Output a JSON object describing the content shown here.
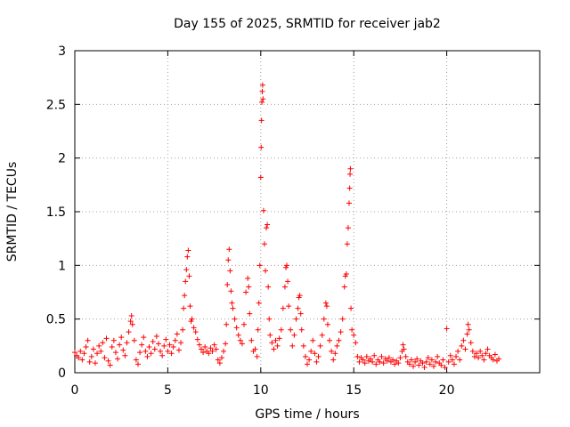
{
  "chart_data": {
    "type": "scatter",
    "title": "Day 155 of 2025, SRMTID for receiver jab2",
    "xlabel": "GPS time / hours",
    "ylabel": "SRMTID / TECUs",
    "xlim": [
      0,
      25
    ],
    "ylim": [
      0,
      3
    ],
    "xticks": [
      0,
      5,
      10,
      15,
      20
    ],
    "yticks": [
      0,
      0.5,
      1,
      1.5,
      2,
      2.5,
      3
    ],
    "xtick_labels": [
      "0",
      "5",
      "10",
      "15",
      "20"
    ],
    "ytick_labels": [
      "0",
      "0.5",
      "1",
      "1.5",
      "2",
      "2.5",
      "3"
    ],
    "grid": true,
    "marker": "+",
    "color": "#ff0000",
    "series": [
      {
        "name": "SRMTID",
        "points": [
          [
            0.0,
            0.19
          ],
          [
            0.1,
            0.16
          ],
          [
            0.2,
            0.14
          ],
          [
            0.3,
            0.2
          ],
          [
            0.4,
            0.12
          ],
          [
            0.5,
            0.18
          ],
          [
            0.6,
            0.24
          ],
          [
            0.7,
            0.3
          ],
          [
            0.8,
            0.1
          ],
          [
            0.9,
            0.15
          ],
          [
            1.0,
            0.22
          ],
          [
            1.1,
            0.09
          ],
          [
            1.2,
            0.18
          ],
          [
            1.3,
            0.25
          ],
          [
            1.4,
            0.2
          ],
          [
            1.5,
            0.28
          ],
          [
            1.6,
            0.14
          ],
          [
            1.7,
            0.32
          ],
          [
            1.8,
            0.11
          ],
          [
            1.9,
            0.07
          ],
          [
            2.0,
            0.24
          ],
          [
            2.1,
            0.3
          ],
          [
            2.2,
            0.19
          ],
          [
            2.3,
            0.13
          ],
          [
            2.4,
            0.26
          ],
          [
            2.5,
            0.33
          ],
          [
            2.6,
            0.21
          ],
          [
            2.7,
            0.16
          ],
          [
            2.8,
            0.28
          ],
          [
            2.9,
            0.38
          ],
          [
            3.0,
            0.48
          ],
          [
            3.05,
            0.53
          ],
          [
            3.1,
            0.45
          ],
          [
            3.2,
            0.3
          ],
          [
            3.3,
            0.12
          ],
          [
            3.4,
            0.08
          ],
          [
            3.5,
            0.19
          ],
          [
            3.6,
            0.26
          ],
          [
            3.7,
            0.33
          ],
          [
            3.8,
            0.2
          ],
          [
            3.9,
            0.15
          ],
          [
            4.0,
            0.24
          ],
          [
            4.1,
            0.18
          ],
          [
            4.2,
            0.29
          ],
          [
            4.3,
            0.22
          ],
          [
            4.4,
            0.34
          ],
          [
            4.5,
            0.27
          ],
          [
            4.6,
            0.2
          ],
          [
            4.7,
            0.16
          ],
          [
            4.8,
            0.25
          ],
          [
            4.9,
            0.31
          ],
          [
            5.0,
            0.2
          ],
          [
            5.1,
            0.26
          ],
          [
            5.2,
            0.18
          ],
          [
            5.3,
            0.24
          ],
          [
            5.4,
            0.3
          ],
          [
            5.5,
            0.36
          ],
          [
            5.6,
            0.21
          ],
          [
            5.7,
            0.28
          ],
          [
            5.8,
            0.4
          ],
          [
            5.85,
            0.6
          ],
          [
            5.9,
            0.72
          ],
          [
            5.95,
            0.85
          ],
          [
            6.0,
            0.96
          ],
          [
            6.05,
            1.08
          ],
          [
            6.1,
            1.14
          ],
          [
            6.15,
            0.9
          ],
          [
            6.2,
            0.62
          ],
          [
            6.25,
            0.48
          ],
          [
            6.3,
            0.5
          ],
          [
            6.4,
            0.42
          ],
          [
            6.5,
            0.38
          ],
          [
            6.6,
            0.31
          ],
          [
            6.7,
            0.26
          ],
          [
            6.8,
            0.22
          ],
          [
            6.9,
            0.19
          ],
          [
            7.0,
            0.24
          ],
          [
            7.1,
            0.2
          ],
          [
            7.2,
            0.18
          ],
          [
            7.3,
            0.23
          ],
          [
            7.4,
            0.2
          ],
          [
            7.5,
            0.26
          ],
          [
            7.6,
            0.22
          ],
          [
            7.7,
            0.12
          ],
          [
            7.8,
            0.09
          ],
          [
            7.9,
            0.14
          ],
          [
            8.0,
            0.2
          ],
          [
            8.1,
            0.27
          ],
          [
            8.15,
            0.45
          ],
          [
            8.2,
            0.82
          ],
          [
            8.25,
            1.05
          ],
          [
            8.3,
            1.15
          ],
          [
            8.35,
            0.95
          ],
          [
            8.4,
            0.76
          ],
          [
            8.45,
            0.65
          ],
          [
            8.5,
            0.6
          ],
          [
            8.6,
            0.5
          ],
          [
            8.7,
            0.42
          ],
          [
            8.8,
            0.35
          ],
          [
            8.9,
            0.3
          ],
          [
            9.0,
            0.27
          ],
          [
            9.1,
            0.45
          ],
          [
            9.2,
            0.75
          ],
          [
            9.3,
            0.88
          ],
          [
            9.35,
            0.8
          ],
          [
            9.4,
            0.55
          ],
          [
            9.5,
            0.3
          ],
          [
            9.6,
            0.2
          ],
          [
            9.7,
            0.22
          ],
          [
            9.8,
            0.15
          ],
          [
            9.85,
            0.4
          ],
          [
            9.9,
            0.65
          ],
          [
            9.95,
            1.0
          ],
          [
            10.0,
            1.82
          ],
          [
            10.02,
            2.1
          ],
          [
            10.04,
            2.35
          ],
          [
            10.06,
            2.52
          ],
          [
            10.08,
            2.62
          ],
          [
            10.1,
            2.68
          ],
          [
            10.12,
            2.55
          ],
          [
            10.15,
            1.51
          ],
          [
            10.2,
            1.2
          ],
          [
            10.25,
            0.95
          ],
          [
            10.3,
            1.35
          ],
          [
            10.35,
            1.38
          ],
          [
            10.4,
            0.8
          ],
          [
            10.45,
            0.5
          ],
          [
            10.5,
            0.35
          ],
          [
            10.6,
            0.28
          ],
          [
            10.7,
            0.22
          ],
          [
            10.8,
            0.3
          ],
          [
            10.9,
            0.25
          ],
          [
            11.0,
            0.32
          ],
          [
            11.1,
            0.4
          ],
          [
            11.2,
            0.6
          ],
          [
            11.3,
            0.8
          ],
          [
            11.35,
            0.98
          ],
          [
            11.4,
            1.0
          ],
          [
            11.45,
            0.85
          ],
          [
            11.5,
            0.62
          ],
          [
            11.6,
            0.4
          ],
          [
            11.7,
            0.25
          ],
          [
            11.8,
            0.35
          ],
          [
            11.9,
            0.5
          ],
          [
            12.0,
            0.6
          ],
          [
            12.05,
            0.7
          ],
          [
            12.1,
            0.72
          ],
          [
            12.15,
            0.55
          ],
          [
            12.2,
            0.4
          ],
          [
            12.3,
            0.25
          ],
          [
            12.4,
            0.15
          ],
          [
            12.5,
            0.08
          ],
          [
            12.6,
            0.12
          ],
          [
            12.7,
            0.2
          ],
          [
            12.8,
            0.3
          ],
          [
            12.9,
            0.18
          ],
          [
            13.0,
            0.1
          ],
          [
            13.1,
            0.15
          ],
          [
            13.2,
            0.25
          ],
          [
            13.3,
            0.35
          ],
          [
            13.4,
            0.5
          ],
          [
            13.5,
            0.65
          ],
          [
            13.55,
            0.62
          ],
          [
            13.6,
            0.45
          ],
          [
            13.7,
            0.3
          ],
          [
            13.8,
            0.2
          ],
          [
            13.9,
            0.12
          ],
          [
            14.0,
            0.18
          ],
          [
            14.1,
            0.25
          ],
          [
            14.2,
            0.3
          ],
          [
            14.3,
            0.38
          ],
          [
            14.4,
            0.5
          ],
          [
            14.5,
            0.8
          ],
          [
            14.55,
            0.9
          ],
          [
            14.6,
            0.92
          ],
          [
            14.65,
            1.2
          ],
          [
            14.7,
            1.35
          ],
          [
            14.75,
            1.58
          ],
          [
            14.78,
            1.72
          ],
          [
            14.8,
            1.85
          ],
          [
            14.82,
            1.9
          ],
          [
            14.85,
            0.6
          ],
          [
            14.9,
            0.4
          ],
          [
            15.0,
            0.35
          ],
          [
            15.1,
            0.28
          ],
          [
            15.2,
            0.15
          ],
          [
            15.3,
            0.1
          ],
          [
            15.4,
            0.14
          ],
          [
            15.5,
            0.12
          ],
          [
            15.6,
            0.09
          ],
          [
            15.7,
            0.15
          ],
          [
            15.8,
            0.11
          ],
          [
            15.9,
            0.13
          ],
          [
            16.0,
            0.1
          ],
          [
            16.1,
            0.16
          ],
          [
            16.2,
            0.08
          ],
          [
            16.3,
            0.12
          ],
          [
            16.4,
            0.1
          ],
          [
            16.5,
            0.15
          ],
          [
            16.6,
            0.09
          ],
          [
            16.7,
            0.13
          ],
          [
            16.8,
            0.11
          ],
          [
            16.9,
            0.14
          ],
          [
            17.0,
            0.1
          ],
          [
            17.1,
            0.12
          ],
          [
            17.2,
            0.08
          ],
          [
            17.3,
            0.11
          ],
          [
            17.4,
            0.09
          ],
          [
            17.5,
            0.14
          ],
          [
            17.6,
            0.2
          ],
          [
            17.65,
            0.26
          ],
          [
            17.7,
            0.22
          ],
          [
            17.8,
            0.15
          ],
          [
            17.9,
            0.1
          ],
          [
            18.0,
            0.08
          ],
          [
            18.1,
            0.12
          ],
          [
            18.2,
            0.06
          ],
          [
            18.3,
            0.1
          ],
          [
            18.4,
            0.13
          ],
          [
            18.5,
            0.07
          ],
          [
            18.6,
            0.11
          ],
          [
            18.7,
            0.09
          ],
          [
            18.8,
            0.05
          ],
          [
            18.9,
            0.1
          ],
          [
            19.0,
            0.14
          ],
          [
            19.1,
            0.08
          ],
          [
            19.2,
            0.12
          ],
          [
            19.3,
            0.06
          ],
          [
            19.4,
            0.1
          ],
          [
            19.5,
            0.15
          ],
          [
            19.6,
            0.09
          ],
          [
            19.7,
            0.07
          ],
          [
            19.8,
            0.12
          ],
          [
            19.9,
            0.05
          ],
          [
            20.0,
            0.41
          ],
          [
            20.1,
            0.1
          ],
          [
            20.2,
            0.16
          ],
          [
            20.3,
            0.12
          ],
          [
            20.4,
            0.08
          ],
          [
            20.5,
            0.15
          ],
          [
            20.6,
            0.2
          ],
          [
            20.7,
            0.12
          ],
          [
            20.8,
            0.25
          ],
          [
            20.9,
            0.3
          ],
          [
            21.0,
            0.22
          ],
          [
            21.1,
            0.36
          ],
          [
            21.15,
            0.45
          ],
          [
            21.2,
            0.4
          ],
          [
            21.3,
            0.28
          ],
          [
            21.4,
            0.2
          ],
          [
            21.5,
            0.15
          ],
          [
            21.6,
            0.18
          ],
          [
            21.7,
            0.14
          ],
          [
            21.8,
            0.2
          ],
          [
            21.9,
            0.16
          ],
          [
            22.0,
            0.12
          ],
          [
            22.1,
            0.18
          ],
          [
            22.2,
            0.22
          ],
          [
            22.3,
            0.16
          ],
          [
            22.4,
            0.14
          ],
          [
            22.5,
            0.12
          ],
          [
            22.6,
            0.17
          ],
          [
            22.7,
            0.11
          ],
          [
            22.8,
            0.13
          ]
        ]
      }
    ]
  }
}
